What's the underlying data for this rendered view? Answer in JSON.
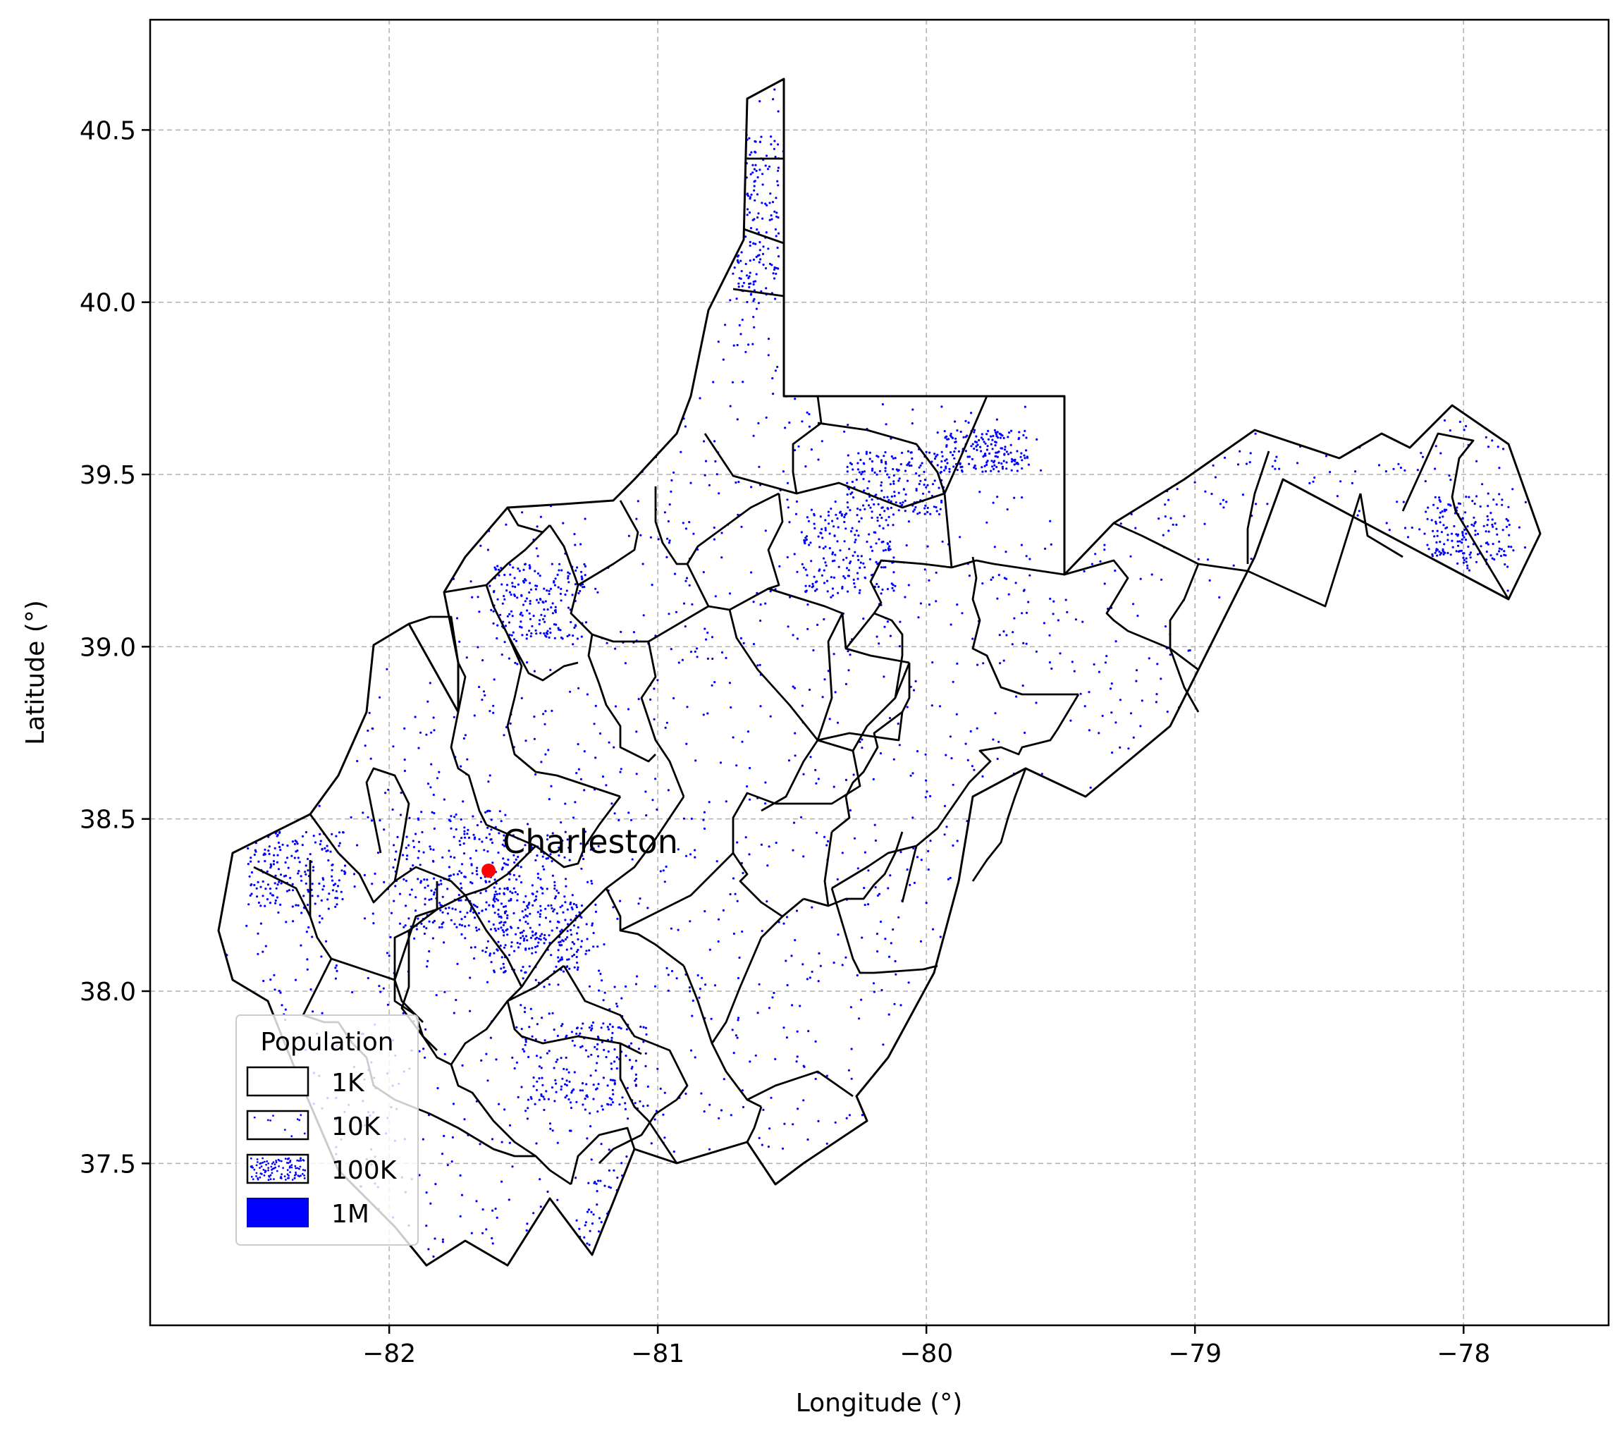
{
  "map": {
    "xlabel": "Longitude (°)",
    "ylabel": "Latitude (°)",
    "x_ticks": [
      "−82",
      "−81",
      "−80",
      "−79",
      "−78"
    ],
    "y_ticks": [
      "37.5",
      "38.0",
      "38.5",
      "39.0",
      "39.5",
      "40.0",
      "40.5"
    ],
    "xlim": [
      -82.89,
      -77.46
    ],
    "ylim": [
      37.03,
      40.82
    ],
    "grid": true,
    "city": {
      "name": "Charleston",
      "lon": -81.63,
      "lat": 38.35,
      "color": "#ff0000"
    },
    "dot_color": "#0000ff",
    "legend": {
      "title": "Population",
      "position": "lower-left",
      "entries": [
        {
          "label": "1K",
          "density": "none"
        },
        {
          "label": "10K",
          "density": "sparse"
        },
        {
          "label": "100K",
          "density": "dense"
        },
        {
          "label": "1M",
          "density": "solid"
        }
      ]
    }
  }
}
